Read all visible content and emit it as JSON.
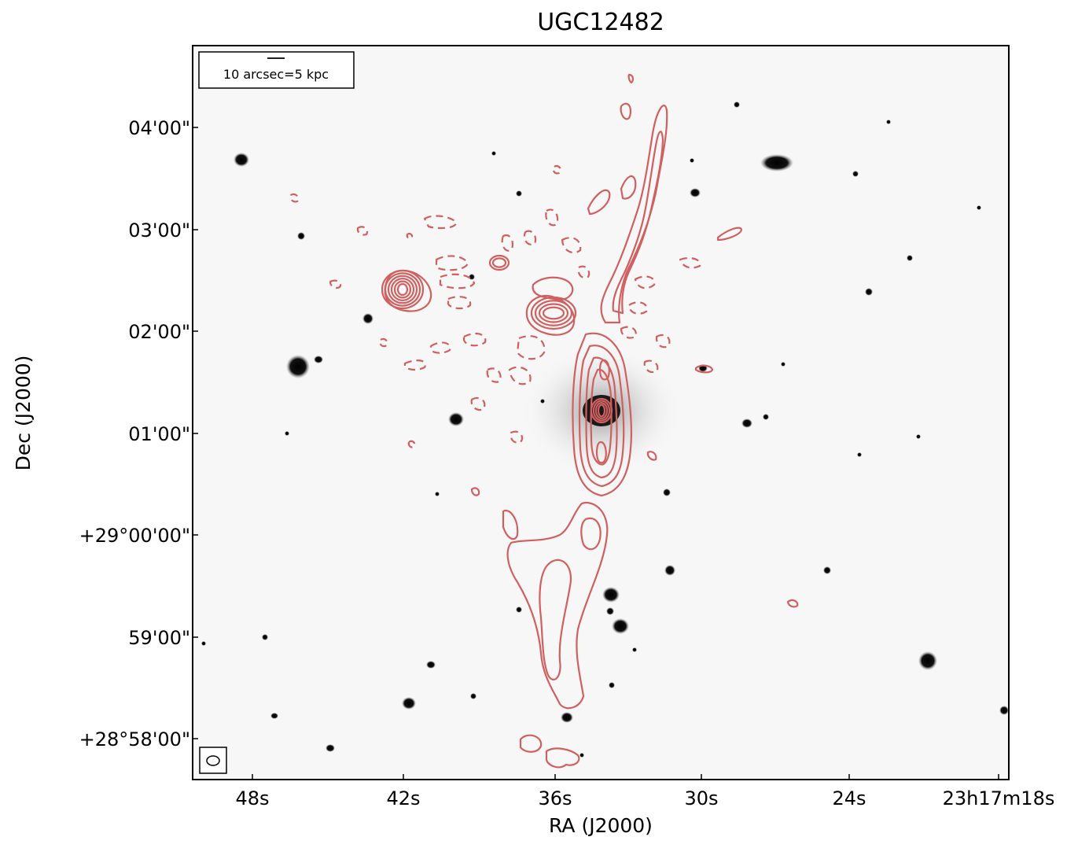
{
  "chart_data": {
    "type": "image",
    "title": "UGC12482",
    "xlabel": "RA (J2000)",
    "ylabel": "Dec (J2000)",
    "x_ticks": [
      "48s",
      "42s",
      "36s",
      "30s",
      "24s",
      "23h17m18s"
    ],
    "y_ticks": [
      "04'00\"",
      "03'00\"",
      "02'00\"",
      "01'00\"",
      "+29°00'00\"",
      "59'00\"",
      "+28°58'00\""
    ],
    "scale_bar_label": "10 arcsec=5 kpc",
    "contour_color": "#d06060",
    "background": "optical greyscale image with radio contours"
  }
}
